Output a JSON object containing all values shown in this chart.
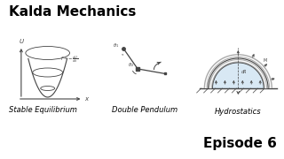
{
  "title": "Kalda Mechanics",
  "episode": "Episode 6",
  "bg_color": "#ffffff",
  "title_fontsize": 11,
  "episode_fontsize": 11,
  "label1": "Stable Equilibrium",
  "label2": "Double Pendulum",
  "label3": "Hydrostatics",
  "label_fontsize": 6.0,
  "diagram_color": "#444444",
  "hydro_fill": "#c8dff0",
  "hydro_fill_alpha": 0.7,
  "arrow_color": "#444444"
}
